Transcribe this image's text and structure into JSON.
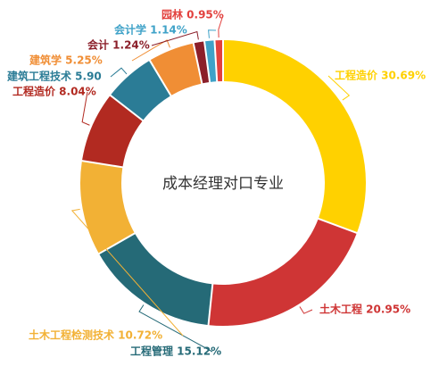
{
  "chart_data": {
    "type": "pie",
    "center_label": "成本经理对口专业",
    "slices": [
      {
        "name": "工程造价",
        "value": 30.69,
        "label": "工程造价 30.69%",
        "color": "#FFD100"
      },
      {
        "name": "土木工程",
        "value": 20.95,
        "label": "土木工程 20.95%",
        "color": "#CF3535"
      },
      {
        "name": "工程管理",
        "value": 15.12,
        "label": "工程管理 15.12%",
        "color": "#256A77"
      },
      {
        "name": "土木工程检测技术",
        "value": 10.72,
        "label": "土木工程检测技术 10.72%",
        "color": "#F2B135"
      },
      {
        "name": "工程造价",
        "value": 8.04,
        "label": "工程造价 8.04%",
        "color": "#B22A21"
      },
      {
        "name": "建筑工程技术",
        "value": 5.9,
        "label": "建筑工程技术 5.90",
        "color": "#2B7C96"
      },
      {
        "name": "建筑学",
        "value": 5.25,
        "label": "建筑学 5.25%",
        "color": "#F08E35"
      },
      {
        "name": "会计",
        "value": 1.24,
        "label": "会计 1.24%",
        "color": "#8B1F2A"
      },
      {
        "name": "会计学",
        "value": 1.14,
        "label": "会计学 1.14%",
        "color": "#3FA2C8"
      },
      {
        "name": "园林",
        "value": 0.95,
        "label": "园林 0.95%",
        "color": "#E2413E"
      }
    ]
  }
}
